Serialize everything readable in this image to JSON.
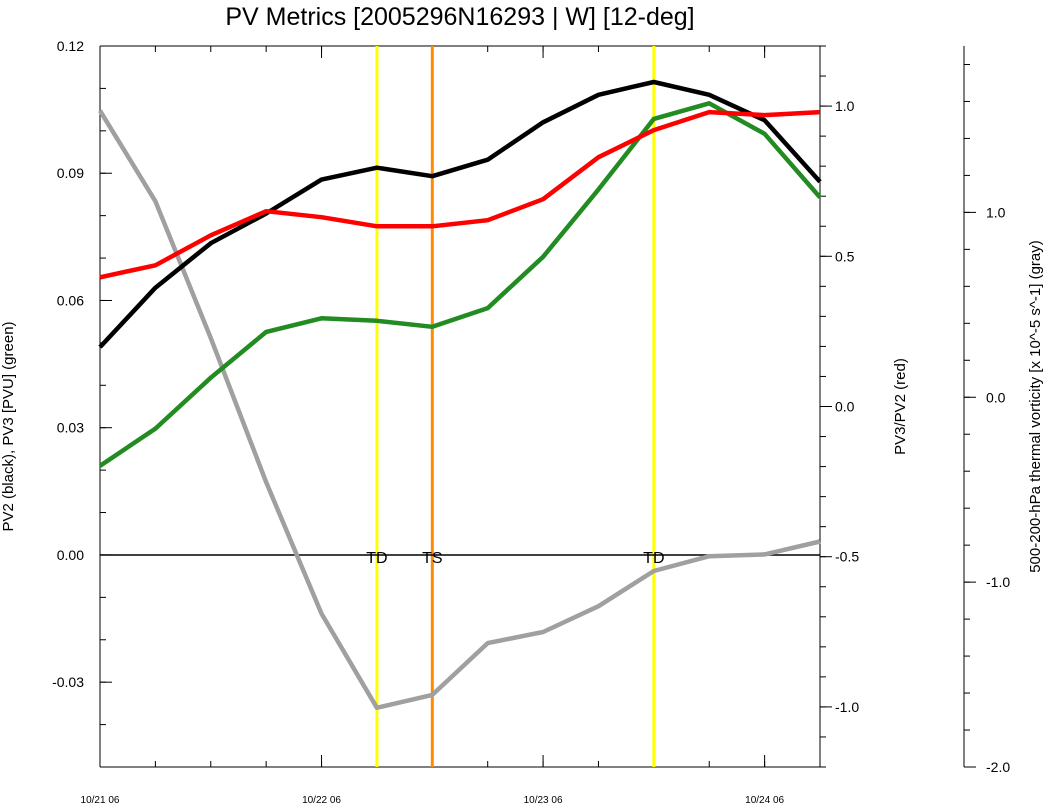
{
  "chart_data": {
    "type": "line",
    "title": "PV Metrics [2005296N16293 | W] [12-deg]",
    "axes": {
      "left": {
        "label": "PV2 (black), PV3 [PVU] (green)",
        "ylim": [
          -0.05,
          0.12
        ],
        "ticks": [
          "0.12",
          "0.09",
          "0.06",
          "0.03",
          "0.00",
          "-0.03"
        ],
        "tick_values": [
          0.12,
          0.09,
          0.06,
          0.03,
          0.0,
          -0.03
        ],
        "minor_step": 0.01
      },
      "right": {
        "label": "PV3/PV2 (red)",
        "ylim": [
          -1.2,
          1.2
        ],
        "ticks": [
          "1.0",
          "0.5",
          "0.0",
          "-0.5",
          "-1.0"
        ],
        "tick_values": [
          1.0,
          0.5,
          0.0,
          -0.5,
          -1.0
        ],
        "minor_step": 0.1
      },
      "far_right": {
        "label": "500-200-hPa thermal vorticity [x 10^-5 s^-1] (gray)",
        "ylim": [
          -2.0,
          1.9
        ],
        "ticks": [
          "1.0",
          "0.0",
          "-1.0",
          "-2.0"
        ],
        "tick_values": [
          1.0,
          0.0,
          -1.0,
          -2.0
        ],
        "minor_step": 0.2
      },
      "x": {
        "xlim": [
          0,
          39
        ],
        "ticks": [
          "10/21 06",
          "10/22 06",
          "10/23 06",
          "10/24 06"
        ],
        "tick_values": [
          0,
          12,
          24,
          36
        ],
        "minor_step": 3
      }
    },
    "x": [
      0,
      3,
      6,
      9,
      12,
      15,
      18,
      21,
      24,
      27,
      30,
      33,
      36,
      39
    ],
    "series": [
      {
        "axis": "left",
        "color": "#000000",
        "values": [
          0.049,
          0.063,
          0.0735,
          0.0805,
          0.0885,
          0.0913,
          0.0893,
          0.0932,
          0.102,
          0.1085,
          0.1115,
          0.1085,
          0.1025,
          0.088
        ]
      },
      {
        "axis": "left",
        "color": "#228b22",
        "values": [
          0.021,
          0.0298,
          0.0418,
          0.0526,
          0.0558,
          0.0552,
          0.0538,
          0.0582,
          0.0703,
          0.0862,
          0.1028,
          0.1065,
          0.0993,
          0.0843
        ]
      },
      {
        "axis": "right",
        "color": "#ff0000",
        "values": [
          0.43,
          0.47,
          0.57,
          0.65,
          0.63,
          0.6,
          0.6,
          0.62,
          0.69,
          0.83,
          0.92,
          0.98,
          0.97,
          0.98
        ]
      },
      {
        "axis": "far_right",
        "color": "#a0a0a0",
        "values": [
          1.55,
          1.06,
          0.32,
          -0.46,
          -1.17,
          -1.68,
          -1.61,
          -1.33,
          -1.27,
          -1.13,
          -0.94,
          -0.86,
          -0.85,
          -0.78
        ]
      }
    ],
    "zero_line": {
      "axis": "left",
      "value": 0.0,
      "color": "#000000"
    },
    "stage_markers": [
      {
        "x": 15,
        "label": "TD",
        "color": "#ffff00"
      },
      {
        "x": 18,
        "label": "TS",
        "color": "#ff8c00"
      },
      {
        "x": 30,
        "label": "TD",
        "color": "#ffff00"
      }
    ],
    "grid": false,
    "legend": "none"
  }
}
